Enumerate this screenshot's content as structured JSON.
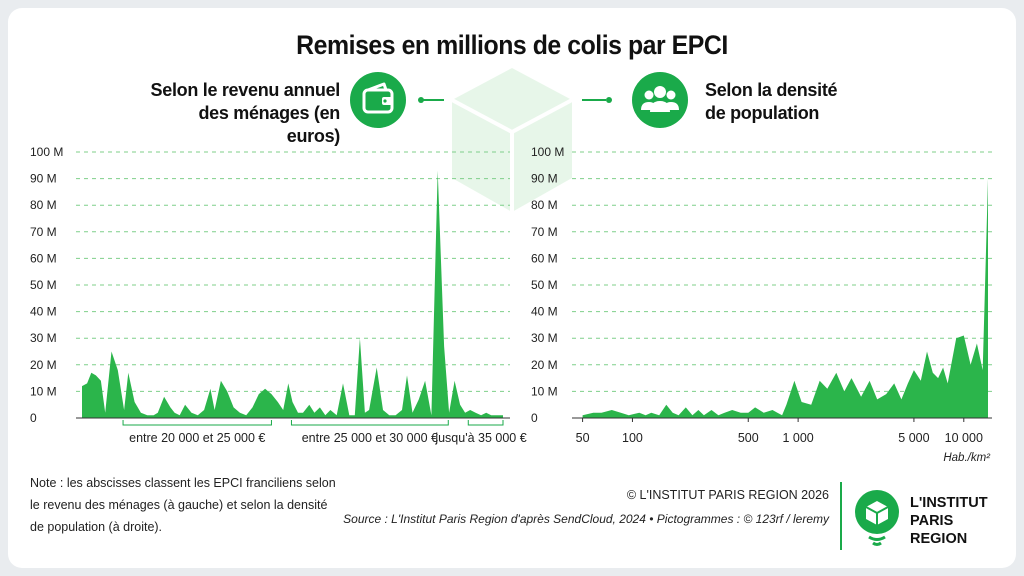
{
  "title": "Remises en millions de colis par EPCI",
  "left_panel": {
    "subtitle_line1": "Selon le revenu annuel",
    "subtitle_line2": "des ménages (en euros)",
    "icon": "wallet-icon"
  },
  "right_panel": {
    "subtitle_line1": "Selon la densité",
    "subtitle_line2": "de population",
    "icon": "people-icon"
  },
  "note": "Note : les abscisses classent les EPCI franciliens selon le revenu des ménages (à gauche) et selon la densité de population (à droite).",
  "copyright": "© L'INSTITUT PARIS REGION 2026",
  "source": "Source : L'Institut Paris Region d'après SendCloud, 2024  •  Pictogrammes : © 123rf /  leremy",
  "logo": {
    "line1": "L'INSTITUT",
    "line2": "PARIS",
    "line3": "REGION"
  },
  "colors": {
    "fill": "#2bb54b",
    "accent": "#1aaa4a",
    "grid": "#7fcf8a"
  },
  "chart_data": [
    {
      "type": "area",
      "ylim": [
        0,
        100
      ],
      "yticks": [
        0,
        10,
        20,
        30,
        40,
        50,
        60,
        70,
        80,
        90,
        100
      ],
      "ytick_labels": [
        "0",
        "10 M",
        "20 M",
        "30 M",
        "40 M",
        "50 M",
        "60 M",
        "70 M",
        "80 M",
        "90 M",
        "100 M"
      ],
      "x_groups": [
        {
          "label": "entre 20 000 et 25 000 €",
          "from": 0.05,
          "to": 0.45
        },
        {
          "label": "entre 25 000 et 30 000 €",
          "from": 0.45,
          "to": 0.87
        },
        {
          "label": "jusqu'à 35 000 €",
          "from": 0.87,
          "to": 1.0
        }
      ],
      "series": [
        {
          "x": [
            0,
            0.012,
            0.022,
            0.033,
            0.045,
            0.055,
            0.07,
            0.085,
            0.1,
            0.11,
            0.125,
            0.14,
            0.155,
            0.17,
            0.18,
            0.195,
            0.21,
            0.22,
            0.232,
            0.245,
            0.26,
            0.275,
            0.29,
            0.305,
            0.315,
            0.33,
            0.345,
            0.36,
            0.375,
            0.39,
            0.405,
            0.42,
            0.435,
            0.45,
            0.465,
            0.478,
            0.49,
            0.5,
            0.513,
            0.525,
            0.54,
            0.552,
            0.565,
            0.578,
            0.59,
            0.605,
            0.62,
            0.635,
            0.648,
            0.66,
            0.672,
            0.682,
            0.7,
            0.715,
            0.73,
            0.745,
            0.76,
            0.772,
            0.785,
            0.8,
            0.815,
            0.83,
            0.845,
            0.86,
            0.872,
            0.885,
            0.898,
            0.91,
            0.922,
            0.935,
            0.948,
            0.96,
            0.972,
            0.985,
            1.0
          ],
          "y": [
            12,
            13,
            17,
            16,
            14,
            2,
            25,
            18,
            3,
            17,
            6,
            2,
            1,
            1,
            2,
            8,
            4,
            2,
            1,
            5,
            2,
            1,
            3,
            11,
            3,
            14,
            10,
            4,
            2,
            1,
            4,
            9,
            11,
            9,
            6,
            3,
            13,
            6,
            2,
            2,
            5,
            2,
            4,
            1,
            3,
            1,
            13,
            1,
            1,
            30,
            2,
            3,
            19,
            3,
            1,
            1,
            3,
            16,
            2,
            7,
            14,
            1,
            93,
            27,
            2,
            14,
            5,
            2,
            3,
            2,
            1,
            2,
            1,
            1,
            1
          ]
        }
      ]
    },
    {
      "type": "area",
      "ylim": [
        0,
        100
      ],
      "yticks": [
        0,
        10,
        20,
        30,
        40,
        50,
        60,
        70,
        80,
        90,
        100
      ],
      "ytick_labels": [
        "0",
        "10 M",
        "20 M",
        "30 M",
        "40 M",
        "50 M",
        "60 M",
        "70 M",
        "80 M",
        "90 M",
        "100 M"
      ],
      "x_ticks": [
        "50",
        "100",
        "500",
        "1 000",
        "5 000",
        "10 000"
      ],
      "xlabel": "Hab./km²",
      "series": [
        {
          "x": [
            50,
            58,
            65,
            75,
            85,
            95,
            110,
            120,
            130,
            145,
            160,
            175,
            190,
            210,
            230,
            250,
            270,
            300,
            330,
            360,
            400,
            450,
            500,
            550,
            620,
            700,
            750,
            800,
            850,
            950,
            1050,
            1200,
            1350,
            1500,
            1700,
            1900,
            2100,
            2400,
            2700,
            3000,
            3400,
            3800,
            4200,
            4600,
            5000,
            5500,
            6000,
            6500,
            7000,
            7500,
            8000,
            9000,
            10000,
            11000,
            12000,
            13000,
            14000
          ],
          "y": [
            1,
            2,
            2,
            3,
            2,
            1,
            2,
            1,
            2,
            1,
            5,
            2,
            1,
            4,
            1,
            3,
            1,
            3,
            1,
            2,
            3,
            2,
            2,
            4,
            2,
            3,
            2,
            1,
            5,
            14,
            6,
            5,
            14,
            11,
            17,
            10,
            15,
            8,
            14,
            7,
            9,
            13,
            7,
            13,
            18,
            14,
            25,
            17,
            15,
            19,
            13,
            30,
            31,
            20,
            28,
            18,
            90
          ]
        }
      ]
    }
  ]
}
